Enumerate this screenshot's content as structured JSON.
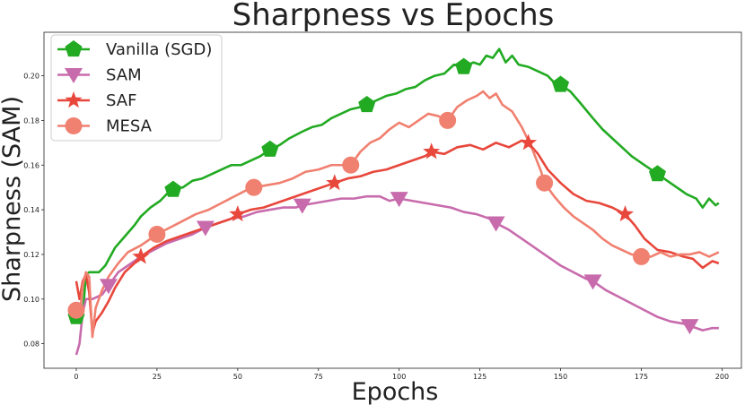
{
  "chart_data": {
    "type": "line",
    "title": "Sharpness vs Epochs",
    "xlabel": "Epochs",
    "ylabel": "Sharpness (SAM)",
    "xlim": [
      -10,
      206
    ],
    "ylim": [
      0.069,
      0.2195
    ],
    "xticks": [
      0,
      25,
      50,
      75,
      100,
      125,
      150,
      175,
      200
    ],
    "yticks": [
      0.08,
      0.1,
      0.12,
      0.14,
      0.16,
      0.18,
      0.2
    ],
    "grid": false,
    "legend_position": "top-left",
    "series": [
      {
        "name": "Vanilla (SGD)",
        "color": "#22aa22",
        "marker": "pentagon",
        "marker_every": [
          0,
          30,
          60,
          90,
          120,
          150,
          180
        ],
        "points": [
          [
            0,
            0.092
          ],
          [
            2,
            0.093
          ],
          [
            3,
            0.111
          ],
          [
            4,
            0.112
          ],
          [
            5,
            0.112
          ],
          [
            7,
            0.112
          ],
          [
            9,
            0.115
          ],
          [
            12,
            0.123
          ],
          [
            15,
            0.128
          ],
          [
            18,
            0.133
          ],
          [
            20,
            0.137
          ],
          [
            23,
            0.141
          ],
          [
            26,
            0.144
          ],
          [
            28,
            0.147
          ],
          [
            30,
            0.149
          ],
          [
            33,
            0.15
          ],
          [
            36,
            0.153
          ],
          [
            39,
            0.154
          ],
          [
            42,
            0.156
          ],
          [
            45,
            0.158
          ],
          [
            48,
            0.16
          ],
          [
            51,
            0.16
          ],
          [
            54,
            0.162
          ],
          [
            57,
            0.164
          ],
          [
            60,
            0.167
          ],
          [
            63,
            0.169
          ],
          [
            66,
            0.172
          ],
          [
            70,
            0.175
          ],
          [
            73,
            0.177
          ],
          [
            76,
            0.178
          ],
          [
            79,
            0.181
          ],
          [
            82,
            0.183
          ],
          [
            85,
            0.185
          ],
          [
            88,
            0.186
          ],
          [
            90,
            0.187
          ],
          [
            93,
            0.189
          ],
          [
            96,
            0.191
          ],
          [
            99,
            0.192
          ],
          [
            102,
            0.194
          ],
          [
            105,
            0.195
          ],
          [
            108,
            0.198
          ],
          [
            111,
            0.2
          ],
          [
            114,
            0.201
          ],
          [
            117,
            0.205
          ],
          [
            120,
            0.204
          ],
          [
            123,
            0.206
          ],
          [
            125,
            0.205
          ],
          [
            127,
            0.209
          ],
          [
            129,
            0.208
          ],
          [
            131,
            0.212
          ],
          [
            133,
            0.206
          ],
          [
            135,
            0.209
          ],
          [
            137,
            0.205
          ],
          [
            140,
            0.204
          ],
          [
            143,
            0.202
          ],
          [
            146,
            0.2
          ],
          [
            148,
            0.197
          ],
          [
            150,
            0.196
          ],
          [
            153,
            0.193
          ],
          [
            156,
            0.188
          ],
          [
            160,
            0.181
          ],
          [
            163,
            0.176
          ],
          [
            166,
            0.172
          ],
          [
            169,
            0.168
          ],
          [
            172,
            0.164
          ],
          [
            175,
            0.161
          ],
          [
            178,
            0.158
          ],
          [
            180,
            0.156
          ],
          [
            183,
            0.153
          ],
          [
            186,
            0.15
          ],
          [
            189,
            0.147
          ],
          [
            192,
            0.145
          ],
          [
            194,
            0.141
          ],
          [
            196,
            0.145
          ],
          [
            198,
            0.142
          ],
          [
            199,
            0.143
          ]
        ]
      },
      {
        "name": "SAM",
        "color": "#c86bac",
        "marker": "triangle-down",
        "marker_every": [
          10,
          40,
          70,
          100,
          130,
          160,
          190
        ],
        "points": [
          [
            0,
            0.075
          ],
          [
            1,
            0.08
          ],
          [
            2,
            0.094
          ],
          [
            3,
            0.1
          ],
          [
            5,
            0.1
          ],
          [
            8,
            0.102
          ],
          [
            10,
            0.106
          ],
          [
            13,
            0.112
          ],
          [
            16,
            0.115
          ],
          [
            20,
            0.119
          ],
          [
            24,
            0.122
          ],
          [
            28,
            0.125
          ],
          [
            32,
            0.127
          ],
          [
            36,
            0.129
          ],
          [
            40,
            0.132
          ],
          [
            44,
            0.134
          ],
          [
            48,
            0.136
          ],
          [
            52,
            0.137
          ],
          [
            56,
            0.139
          ],
          [
            60,
            0.14
          ],
          [
            64,
            0.141
          ],
          [
            68,
            0.141
          ],
          [
            70,
            0.142
          ],
          [
            74,
            0.143
          ],
          [
            78,
            0.144
          ],
          [
            82,
            0.145
          ],
          [
            86,
            0.145
          ],
          [
            90,
            0.146
          ],
          [
            94,
            0.146
          ],
          [
            97,
            0.144
          ],
          [
            100,
            0.145
          ],
          [
            104,
            0.144
          ],
          [
            108,
            0.143
          ],
          [
            112,
            0.142
          ],
          [
            116,
            0.141
          ],
          [
            120,
            0.139
          ],
          [
            124,
            0.138
          ],
          [
            128,
            0.136
          ],
          [
            130,
            0.134
          ],
          [
            134,
            0.131
          ],
          [
            138,
            0.127
          ],
          [
            142,
            0.123
          ],
          [
            146,
            0.119
          ],
          [
            150,
            0.115
          ],
          [
            154,
            0.112
          ],
          [
            158,
            0.109
          ],
          [
            160,
            0.108
          ],
          [
            164,
            0.104
          ],
          [
            168,
            0.101
          ],
          [
            172,
            0.098
          ],
          [
            176,
            0.095
          ],
          [
            180,
            0.092
          ],
          [
            184,
            0.09
          ],
          [
            188,
            0.089
          ],
          [
            190,
            0.088
          ],
          [
            194,
            0.086
          ],
          [
            197,
            0.087
          ],
          [
            199,
            0.087
          ]
        ]
      },
      {
        "name": "SAF",
        "color": "#e8473c",
        "marker": "star",
        "marker_every": [
          20,
          50,
          80,
          110,
          140,
          170
        ],
        "points": [
          [
            0,
            0.108
          ],
          [
            1,
            0.1
          ],
          [
            2,
            0.108
          ],
          [
            3,
            0.111
          ],
          [
            4,
            0.103
          ],
          [
            5,
            0.085
          ],
          [
            6,
            0.09
          ],
          [
            8,
            0.094
          ],
          [
            10,
            0.099
          ],
          [
            12,
            0.105
          ],
          [
            15,
            0.112
          ],
          [
            18,
            0.116
          ],
          [
            20,
            0.119
          ],
          [
            24,
            0.123
          ],
          [
            28,
            0.126
          ],
          [
            32,
            0.128
          ],
          [
            36,
            0.13
          ],
          [
            40,
            0.132
          ],
          [
            44,
            0.134
          ],
          [
            48,
            0.136
          ],
          [
            50,
            0.138
          ],
          [
            54,
            0.14
          ],
          [
            58,
            0.141
          ],
          [
            62,
            0.143
          ],
          [
            66,
            0.145
          ],
          [
            70,
            0.147
          ],
          [
            74,
            0.149
          ],
          [
            78,
            0.151
          ],
          [
            80,
            0.152
          ],
          [
            84,
            0.154
          ],
          [
            88,
            0.155
          ],
          [
            92,
            0.157
          ],
          [
            96,
            0.158
          ],
          [
            100,
            0.16
          ],
          [
            104,
            0.162
          ],
          [
            108,
            0.164
          ],
          [
            110,
            0.166
          ],
          [
            114,
            0.165
          ],
          [
            118,
            0.168
          ],
          [
            122,
            0.169
          ],
          [
            126,
            0.167
          ],
          [
            130,
            0.17
          ],
          [
            134,
            0.168
          ],
          [
            138,
            0.171
          ],
          [
            140,
            0.17
          ],
          [
            143,
            0.165
          ],
          [
            146,
            0.158
          ],
          [
            150,
            0.152
          ],
          [
            154,
            0.147
          ],
          [
            158,
            0.144
          ],
          [
            162,
            0.143
          ],
          [
            166,
            0.141
          ],
          [
            170,
            0.138
          ],
          [
            173,
            0.133
          ],
          [
            176,
            0.127
          ],
          [
            180,
            0.122
          ],
          [
            184,
            0.121
          ],
          [
            188,
            0.119
          ],
          [
            191,
            0.118
          ],
          [
            194,
            0.114
          ],
          [
            197,
            0.117
          ],
          [
            199,
            0.116
          ]
        ]
      },
      {
        "name": "MESA",
        "color": "#f08070",
        "marker": "circle",
        "marker_every": [
          0,
          25,
          55,
          85,
          115,
          145,
          175
        ],
        "points": [
          [
            0,
            0.095
          ],
          [
            1,
            0.091
          ],
          [
            2,
            0.106
          ],
          [
            3,
            0.112
          ],
          [
            4,
            0.11
          ],
          [
            5,
            0.083
          ],
          [
            6,
            0.096
          ],
          [
            8,
            0.104
          ],
          [
            10,
            0.11
          ],
          [
            13,
            0.116
          ],
          [
            16,
            0.121
          ],
          [
            20,
            0.124
          ],
          [
            25,
            0.129
          ],
          [
            29,
            0.132
          ],
          [
            33,
            0.135
          ],
          [
            37,
            0.138
          ],
          [
            41,
            0.14
          ],
          [
            45,
            0.143
          ],
          [
            49,
            0.146
          ],
          [
            53,
            0.149
          ],
          [
            55,
            0.15
          ],
          [
            59,
            0.151
          ],
          [
            63,
            0.152
          ],
          [
            67,
            0.154
          ],
          [
            71,
            0.157
          ],
          [
            75,
            0.158
          ],
          [
            79,
            0.16
          ],
          [
            83,
            0.16
          ],
          [
            85,
            0.16
          ],
          [
            88,
            0.166
          ],
          [
            91,
            0.17
          ],
          [
            94,
            0.172
          ],
          [
            97,
            0.176
          ],
          [
            100,
            0.179
          ],
          [
            103,
            0.177
          ],
          [
            106,
            0.18
          ],
          [
            109,
            0.183
          ],
          [
            112,
            0.182
          ],
          [
            115,
            0.18
          ],
          [
            118,
            0.186
          ],
          [
            121,
            0.189
          ],
          [
            124,
            0.191
          ],
          [
            126,
            0.193
          ],
          [
            128,
            0.19
          ],
          [
            130,
            0.192
          ],
          [
            132,
            0.187
          ],
          [
            135,
            0.184
          ],
          [
            138,
            0.177
          ],
          [
            141,
            0.168
          ],
          [
            144,
            0.157
          ],
          [
            145,
            0.152
          ],
          [
            148,
            0.146
          ],
          [
            151,
            0.141
          ],
          [
            154,
            0.137
          ],
          [
            157,
            0.134
          ],
          [
            160,
            0.131
          ],
          [
            163,
            0.127
          ],
          [
            166,
            0.124
          ],
          [
            169,
            0.122
          ],
          [
            172,
            0.12
          ],
          [
            175,
            0.119
          ],
          [
            178,
            0.119
          ],
          [
            181,
            0.121
          ],
          [
            184,
            0.119
          ],
          [
            187,
            0.12
          ],
          [
            190,
            0.12
          ],
          [
            193,
            0.121
          ],
          [
            196,
            0.119
          ],
          [
            199,
            0.121
          ]
        ]
      }
    ]
  }
}
